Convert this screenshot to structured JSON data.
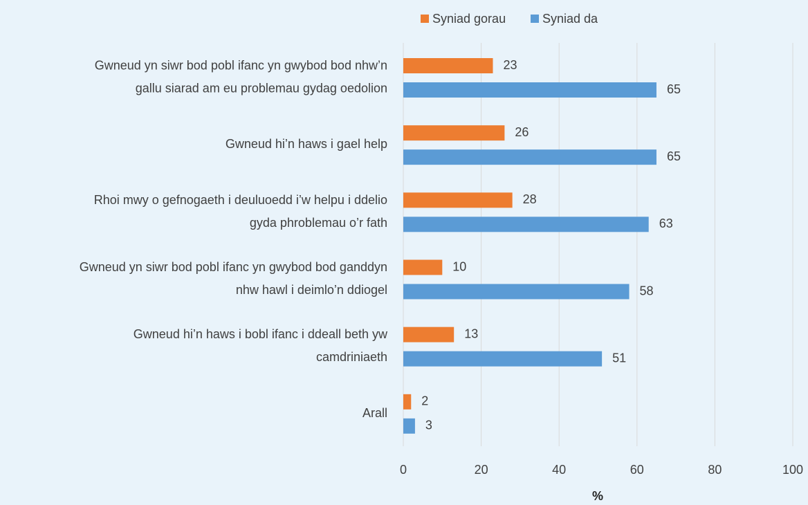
{
  "chart_data": {
    "type": "hbar",
    "xlabel": "%",
    "categories": [
      [
        "Gwneud yn siwr bod pobl ifanc yn gwybod bod nhw’n",
        "gallu siarad am eu problemau gydag oedolion"
      ],
      [
        "Gwneud hi’n haws i gael help"
      ],
      [
        "Rhoi mwy o gefnogaeth i deuluoedd i’w helpu i ddelio",
        "gyda phroblemau o’r fath"
      ],
      [
        "Gwneud yn siwr bod pobl ifanc yn gwybod bod ganddyn",
        "nhw hawl i deimlo’n ddiogel"
      ],
      [
        "Gwneud hi’n haws i bobl ifanc i ddeall beth yw",
        "camdriniaeth"
      ],
      [
        "Arall"
      ]
    ],
    "series": [
      {
        "name": "Syniad gorau",
        "color": "#ed7d31",
        "values": [
          23,
          26,
          28,
          10,
          13,
          2
        ]
      },
      {
        "name": "Syniad da",
        "color": "#5b9bd5",
        "values": [
          65,
          65,
          63,
          58,
          51,
          3
        ]
      }
    ],
    "xlim": [
      0,
      100
    ],
    "xticks": [
      0,
      20,
      40,
      60,
      80,
      100
    ],
    "grid": true
  }
}
